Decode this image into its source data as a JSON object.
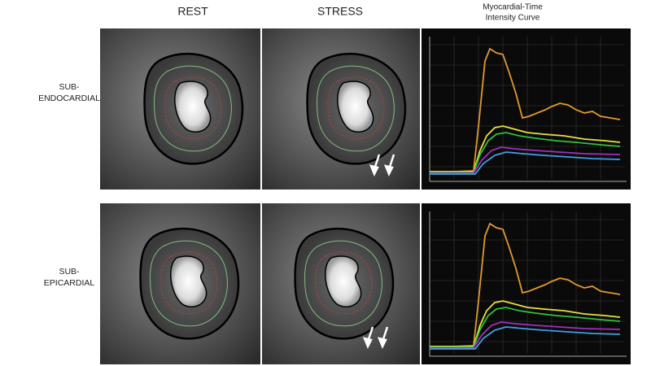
{
  "columns": [
    "REST",
    "STRESS"
  ],
  "curve_title": [
    "Myocardial-Time",
    "Intensity Curve"
  ],
  "row_labels": [
    [
      "SUB-",
      "ENDOCARDIAL"
    ],
    [
      "SUB-",
      "EPICARDIAL"
    ]
  ]
}
